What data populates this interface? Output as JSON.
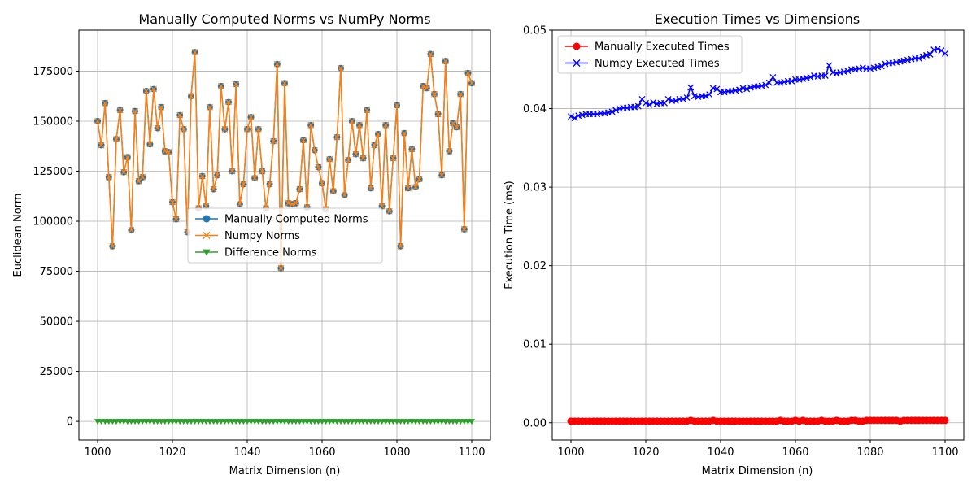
{
  "chart_data": [
    {
      "type": "line",
      "title": "Manually Computed Norms vs NumPy Norms",
      "xlabel": "Matrix Dimension (n)",
      "ylabel": "Euclidean Norm",
      "xlim": [
        995,
        1105
      ],
      "ylim": [
        -9300,
        195500
      ],
      "xticks": [
        1000,
        1020,
        1040,
        1060,
        1080,
        1100
      ],
      "yticks": [
        0,
        25000,
        50000,
        75000,
        100000,
        125000,
        150000,
        175000
      ],
      "grid": true,
      "legend": "center",
      "x_start": 1000,
      "series": [
        {
          "name": "Manually Computed Norms",
          "color": "#1f77b4",
          "marker": "circle",
          "values": [
            150000,
            138000,
            159000,
            122000,
            87500,
            141000,
            155500,
            124500,
            132000,
            95500,
            155000,
            120000,
            122000,
            165000,
            138500,
            166000,
            146500,
            157000,
            135000,
            134500,
            109500,
            101000,
            153000,
            146000,
            94500,
            162500,
            184500,
            106500,
            122500,
            107500,
            157000,
            116000,
            123000,
            167500,
            146000,
            159500,
            125000,
            168500,
            108500,
            118500,
            146000,
            152000,
            121500,
            146000,
            125000,
            106500,
            118500,
            140000,
            178500,
            76500,
            169000,
            109000,
            108500,
            109000,
            116000,
            140500,
            107000,
            148000,
            135500,
            127000,
            119000,
            106000,
            131000,
            115000,
            142000,
            176500,
            113000,
            130500,
            150000,
            133500,
            148000,
            131500,
            155500,
            116500,
            138000,
            143500,
            107500,
            148000,
            105000,
            131500,
            158000,
            87500,
            144000,
            116500,
            136000,
            117000,
            121000,
            167500,
            166500,
            183500,
            163500,
            153500,
            123000,
            180000,
            135000,
            149000,
            147000,
            163500,
            96000,
            174000,
            169000
          ]
        },
        {
          "name": "Numpy Norms",
          "color": "#ff7f0e",
          "marker": "x",
          "values": [
            150000,
            138000,
            159000,
            122000,
            87500,
            141000,
            155500,
            124500,
            132000,
            95500,
            155000,
            120000,
            122000,
            165000,
            138500,
            166000,
            146500,
            157000,
            135000,
            134500,
            109500,
            101000,
            153000,
            146000,
            94500,
            162500,
            184500,
            106500,
            122500,
            107500,
            157000,
            116000,
            123000,
            167500,
            146000,
            159500,
            125000,
            168500,
            108500,
            118500,
            146000,
            152000,
            121500,
            146000,
            125000,
            106500,
            118500,
            140000,
            178500,
            76500,
            169000,
            109000,
            108500,
            109000,
            116000,
            140500,
            107000,
            148000,
            135500,
            127000,
            119000,
            106000,
            131000,
            115000,
            142000,
            176500,
            113000,
            130500,
            150000,
            133500,
            148000,
            131500,
            155500,
            116500,
            138000,
            143500,
            107500,
            148000,
            105000,
            131500,
            158000,
            87500,
            144000,
            116500,
            136000,
            117000,
            121000,
            167500,
            166500,
            183500,
            163500,
            153500,
            123000,
            180000,
            135000,
            149000,
            147000,
            163500,
            96000,
            174000,
            169000
          ]
        },
        {
          "name": "Difference Norms",
          "color": "#2ca02c",
          "marker": "triangle-down",
          "constant": 0
        }
      ]
    },
    {
      "type": "line",
      "title": "Execution Times vs Dimensions",
      "xlabel": "Matrix Dimension (n)",
      "ylabel": "Execution Time (ms)",
      "xlim": [
        995,
        1105
      ],
      "ylim": [
        -0.0022,
        0.05
      ],
      "xticks": [
        1000,
        1020,
        1040,
        1060,
        1080,
        1100
      ],
      "yticks": [
        "0.00",
        "0.01",
        "0.02",
        "0.03",
        "0.04",
        "0.05"
      ],
      "yticks_values": [
        0,
        0.01,
        0.02,
        0.03,
        0.04,
        0.05
      ],
      "grid": true,
      "legend": "upper-left",
      "x_start": 1000,
      "series": [
        {
          "name": "Manually Executed Times",
          "color": "#ff0000",
          "marker": "circle",
          "values": [
            0.0002,
            0.0002,
            0.0002,
            0.0002,
            0.0002,
            0.0002,
            0.0002,
            0.0002,
            0.0002,
            0.0002,
            0.0002,
            0.0002,
            0.0002,
            0.0002,
            0.0002,
            0.0002,
            0.0002,
            0.0002,
            0.0002,
            0.0002,
            0.0002,
            0.0002,
            0.0002,
            0.0002,
            0.0002,
            0.0002,
            0.0002,
            0.0002,
            0.0002,
            0.0002,
            0.0002,
            0.0002,
            0.0003,
            0.0002,
            0.0002,
            0.0002,
            0.0002,
            0.0002,
            0.0003,
            0.0002,
            0.0002,
            0.0002,
            0.0002,
            0.0002,
            0.0002,
            0.0002,
            0.0002,
            0.0002,
            0.0002,
            0.0002,
            0.0002,
            0.0002,
            0.0002,
            0.0002,
            0.0002,
            0.0002,
            0.0003,
            0.0002,
            0.0002,
            0.0002,
            0.0003,
            0.0002,
            0.0003,
            0.0002,
            0.0002,
            0.0002,
            0.0002,
            0.0003,
            0.0002,
            0.0002,
            0.0002,
            0.0003,
            0.0002,
            0.0002,
            0.0002,
            0.0003,
            0.0003,
            0.0002,
            0.0002,
            0.0003,
            0.0003,
            0.0003,
            0.0003,
            0.0003,
            0.0003,
            0.0003,
            0.0003,
            0.0003,
            0.0002,
            0.0003,
            0.0003,
            0.0003,
            0.0003,
            0.0003,
            0.0003,
            0.0003,
            0.0003,
            0.0003,
            0.0003,
            0.0003,
            0.0003
          ]
        },
        {
          "name": "Numpy Executed Times",
          "color": "#0000ff",
          "marker": "x",
          "values": [
            0.039,
            0.0388,
            0.0391,
            0.0392,
            0.0393,
            0.0393,
            0.0393,
            0.0393,
            0.0394,
            0.0394,
            0.0395,
            0.0396,
            0.0398,
            0.04,
            0.0401,
            0.0401,
            0.0402,
            0.0402,
            0.0403,
            0.0412,
            0.0407,
            0.0405,
            0.0408,
            0.0406,
            0.0407,
            0.0407,
            0.0412,
            0.041,
            0.041,
            0.0412,
            0.0412,
            0.0414,
            0.0427,
            0.0416,
            0.0415,
            0.0416,
            0.0416,
            0.0418,
            0.0426,
            0.0425,
            0.0421,
            0.0421,
            0.0422,
            0.0422,
            0.0423,
            0.0424,
            0.0426,
            0.0425,
            0.0427,
            0.0428,
            0.0428,
            0.0429,
            0.043,
            0.0433,
            0.044,
            0.0433,
            0.0433,
            0.0434,
            0.0435,
            0.0435,
            0.0437,
            0.0437,
            0.0438,
            0.0439,
            0.044,
            0.0442,
            0.0441,
            0.0442,
            0.0442,
            0.0455,
            0.0446,
            0.0445,
            0.0446,
            0.0447,
            0.0448,
            0.045,
            0.045,
            0.0451,
            0.0452,
            0.0451,
            0.0451,
            0.0452,
            0.0453,
            0.0454,
            0.0457,
            0.0458,
            0.0458,
            0.0459,
            0.046,
            0.0461,
            0.0462,
            0.0463,
            0.0464,
            0.0464,
            0.0466,
            0.0468,
            0.0469,
            0.0475,
            0.0476,
            0.0474,
            0.047
          ]
        }
      ]
    }
  ]
}
